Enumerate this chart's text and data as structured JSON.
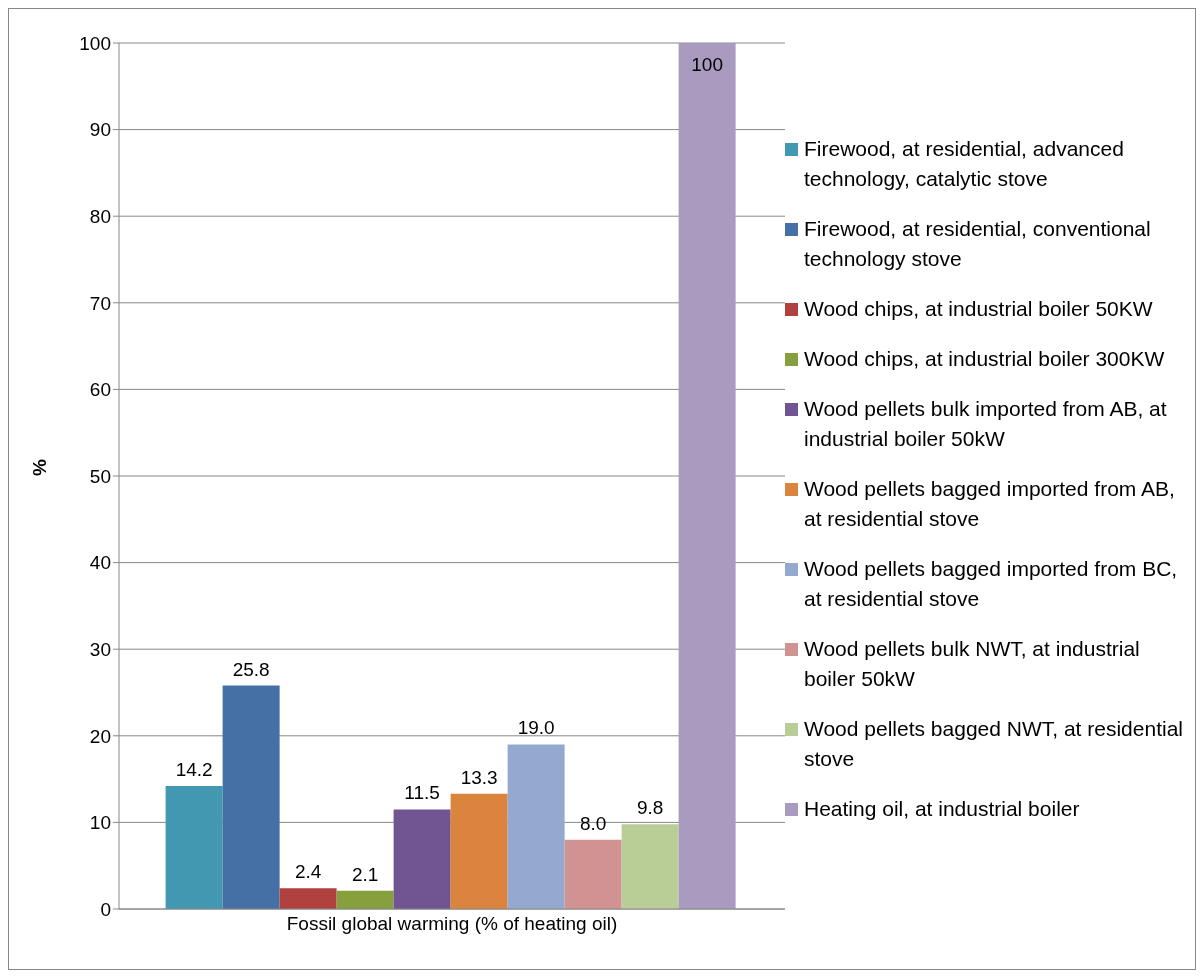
{
  "chart_data": {
    "type": "bar",
    "ylabel": "%",
    "categories": [
      "Fossil global warming (% of heating oil)"
    ],
    "ylim": [
      0,
      100
    ],
    "yticks": [
      0,
      10,
      20,
      30,
      40,
      50,
      60,
      70,
      80,
      90,
      100
    ],
    "grid": "y",
    "legend": "right",
    "series": [
      {
        "name": "Firewood, at residential, advanced technology, catalytic stove",
        "color": "#4298b0",
        "values": [
          14.2
        ],
        "value_labels": [
          "14.2"
        ]
      },
      {
        "name": "Firewood, at residential, conventional technology stove",
        "color": "#4470a5",
        "values": [
          25.8
        ],
        "value_labels": [
          "25.8"
        ]
      },
      {
        "name": "Wood chips, at industrial boiler 50KW",
        "color": "#b0413e",
        "values": [
          2.4
        ],
        "value_labels": [
          "2.4"
        ]
      },
      {
        "name": "Wood chips, at industrial boiler 300KW",
        "color": "#86a03e",
        "values": [
          2.1
        ],
        "value_labels": [
          "2.1"
        ]
      },
      {
        "name": "Wood pellets bulk imported from AB, at industrial boiler 50kW",
        "color": "#715592",
        "values": [
          11.5
        ],
        "value_labels": [
          "11.5"
        ]
      },
      {
        "name": "Wood pellets bagged imported from AB, at residential stove",
        "color": "#db843d",
        "values": [
          13.3
        ],
        "value_labels": [
          "13.3"
        ]
      },
      {
        "name": "Wood pellets bagged imported from BC, at residential stove",
        "color": "#93a9d0",
        "values": [
          19.0
        ],
        "value_labels": [
          "19.0"
        ]
      },
      {
        "name": "Wood pellets bulk NWT, at industrial boiler 50kW",
        "color": "#d19392",
        "values": [
          8.0
        ],
        "value_labels": [
          "8.0"
        ]
      },
      {
        "name": "Wood pellets bagged NWT, at residential stove",
        "color": "#b9cd96",
        "values": [
          9.8
        ],
        "value_labels": [
          "9.8"
        ]
      },
      {
        "name": "Heating oil, at industrial boiler",
        "color": "#a99bc0",
        "values": [
          100
        ],
        "value_labels": [
          "100"
        ]
      }
    ]
  }
}
